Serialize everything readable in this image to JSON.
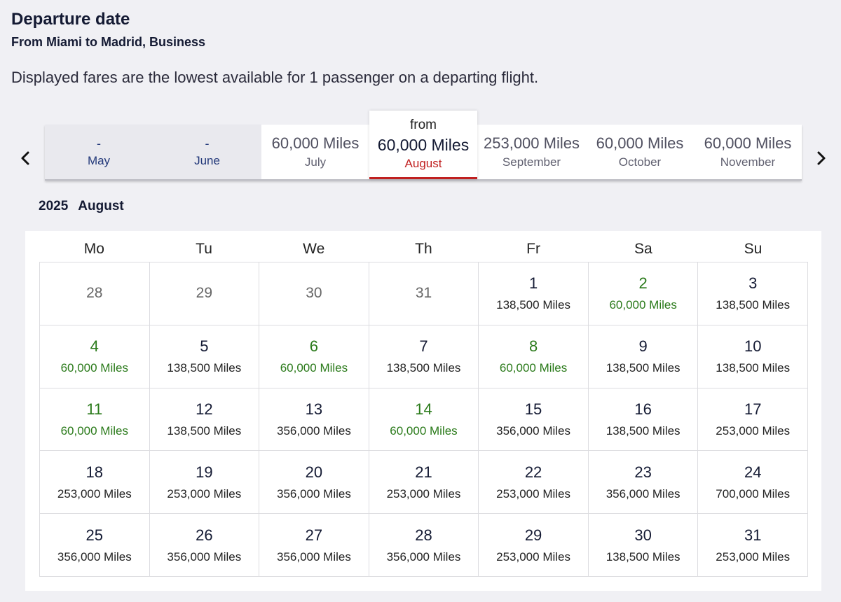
{
  "header": {
    "title": "Departure date",
    "subtitle": "From Miami to Madrid, Business",
    "notice": "Displayed fares are the lowest available for 1 passenger on a departing flight."
  },
  "colors": {
    "low_fare": "#2a7a1a",
    "selected_accent": "#c02020",
    "navy": "#141a33"
  },
  "carousel": {
    "prev_icon": "chevron-left-icon",
    "next_icon": "chevron-right-icon",
    "months": [
      {
        "price": "-",
        "name": "May",
        "disabled": true
      },
      {
        "price": "-",
        "name": "June",
        "disabled": true
      },
      {
        "price": "60,000 Miles",
        "name": "July"
      },
      {
        "from": "from",
        "price": "60,000 Miles",
        "name": "August",
        "selected": true
      },
      {
        "price": "253,000 Miles",
        "name": "September"
      },
      {
        "price": "60,000 Miles",
        "name": "October"
      },
      {
        "price": "60,000 Miles",
        "name": "November"
      }
    ]
  },
  "calendar": {
    "year": "2025",
    "month": "August",
    "weekdays": [
      "Mo",
      "Tu",
      "We",
      "Th",
      "Fr",
      "Sa",
      "Su"
    ],
    "days": [
      {
        "num": "28",
        "other": true
      },
      {
        "num": "29",
        "other": true
      },
      {
        "num": "30",
        "other": true
      },
      {
        "num": "31",
        "other": true
      },
      {
        "num": "1",
        "fare": "138,500 Miles"
      },
      {
        "num": "2",
        "fare": "60,000 Miles",
        "low": true
      },
      {
        "num": "3",
        "fare": "138,500 Miles"
      },
      {
        "num": "4",
        "fare": "60,000 Miles",
        "low": true
      },
      {
        "num": "5",
        "fare": "138,500 Miles"
      },
      {
        "num": "6",
        "fare": "60,000 Miles",
        "low": true
      },
      {
        "num": "7",
        "fare": "138,500 Miles"
      },
      {
        "num": "8",
        "fare": "60,000 Miles",
        "low": true
      },
      {
        "num": "9",
        "fare": "138,500 Miles"
      },
      {
        "num": "10",
        "fare": "138,500 Miles"
      },
      {
        "num": "11",
        "fare": "60,000 Miles",
        "low": true
      },
      {
        "num": "12",
        "fare": "138,500 Miles"
      },
      {
        "num": "13",
        "fare": "356,000 Miles"
      },
      {
        "num": "14",
        "fare": "60,000 Miles",
        "low": true
      },
      {
        "num": "15",
        "fare": "356,000 Miles"
      },
      {
        "num": "16",
        "fare": "138,500 Miles"
      },
      {
        "num": "17",
        "fare": "253,000 Miles"
      },
      {
        "num": "18",
        "fare": "253,000 Miles"
      },
      {
        "num": "19",
        "fare": "253,000 Miles"
      },
      {
        "num": "20",
        "fare": "356,000 Miles"
      },
      {
        "num": "21",
        "fare": "253,000 Miles"
      },
      {
        "num": "22",
        "fare": "253,000 Miles"
      },
      {
        "num": "23",
        "fare": "356,000 Miles"
      },
      {
        "num": "24",
        "fare": "700,000 Miles"
      },
      {
        "num": "25",
        "fare": "356,000 Miles"
      },
      {
        "num": "26",
        "fare": "356,000 Miles"
      },
      {
        "num": "27",
        "fare": "356,000 Miles"
      },
      {
        "num": "28",
        "fare": "356,000 Miles"
      },
      {
        "num": "29",
        "fare": "253,000 Miles"
      },
      {
        "num": "30",
        "fare": "138,500 Miles"
      },
      {
        "num": "31",
        "fare": "253,000 Miles"
      }
    ]
  }
}
